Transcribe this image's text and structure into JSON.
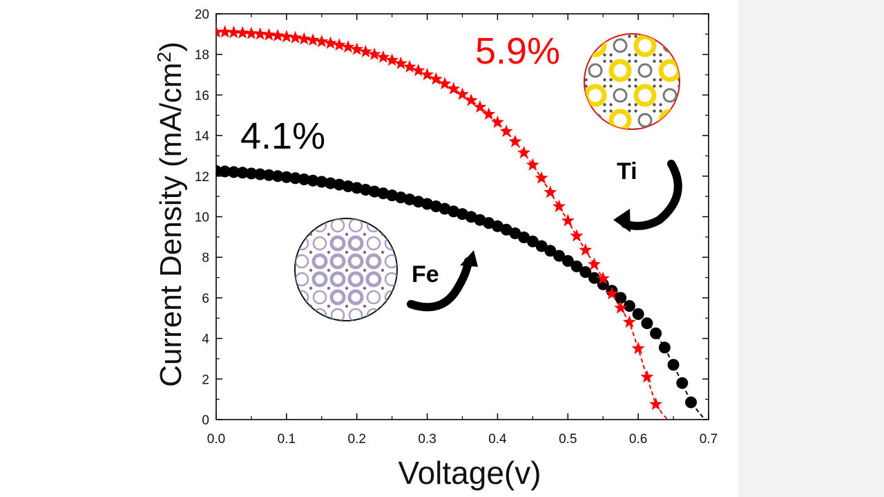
{
  "colors": {
    "black_series": "#000000",
    "red_series": "#ff0000",
    "panel": "#f2f2f2",
    "ti_atoms": "#f5d60a",
    "fe_atoms": "#9a8fb8"
  },
  "chart_data": {
    "type": "scatter",
    "xlabel": "Voltage(v)",
    "ylabel": "Current Density (mA/cm",
    "ylabel_sup": "2",
    "ylabel_close": ")",
    "xlim": [
      0.0,
      0.7
    ],
    "ylim": [
      0,
      20
    ],
    "x_ticks": [
      "0.0",
      "0.1",
      "0.2",
      "0.3",
      "0.4",
      "0.5",
      "0.6",
      "0.7"
    ],
    "y_ticks": [
      "0",
      "2",
      "4",
      "6",
      "8",
      "10",
      "12",
      "14",
      "16",
      "18",
      "20"
    ],
    "grid": false,
    "series": [
      {
        "marker": "circle",
        "color": "#000000",
        "efficiency": "4.1%",
        "x": [
          0.0,
          0.0125,
          0.025,
          0.0375,
          0.05,
          0.0625,
          0.075,
          0.0875,
          0.1,
          0.1125,
          0.125,
          0.1375,
          0.15,
          0.1625,
          0.175,
          0.1875,
          0.2,
          0.2125,
          0.225,
          0.2375,
          0.25,
          0.2625,
          0.275,
          0.2875,
          0.3,
          0.3125,
          0.325,
          0.3375,
          0.35,
          0.3625,
          0.375,
          0.3875,
          0.4,
          0.4125,
          0.425,
          0.4375,
          0.45,
          0.4625,
          0.475,
          0.4875,
          0.5,
          0.5125,
          0.525,
          0.5375,
          0.55,
          0.5625,
          0.575,
          0.5875,
          0.6,
          0.6125,
          0.625,
          0.6375,
          0.65,
          0.6625,
          0.675
        ],
        "y": [
          12.25,
          12.23,
          12.2,
          12.17,
          12.13,
          12.09,
          12.05,
          12.0,
          11.95,
          11.9,
          11.84,
          11.78,
          11.72,
          11.65,
          11.58,
          11.5,
          11.42,
          11.33,
          11.24,
          11.15,
          11.05,
          10.95,
          10.85,
          10.74,
          10.63,
          10.51,
          10.39,
          10.26,
          10.13,
          9.99,
          9.84,
          9.69,
          9.53,
          9.36,
          9.18,
          8.98,
          8.78,
          8.55,
          8.32,
          8.07,
          7.82,
          7.55,
          7.27,
          6.98,
          6.67,
          6.35,
          6.0,
          5.6,
          5.2,
          4.75,
          4.25,
          3.55,
          2.7,
          1.8,
          0.85
        ]
      },
      {
        "marker": "star",
        "color": "#ff0000",
        "efficiency": "5.9%",
        "x": [
          0.0,
          0.0125,
          0.025,
          0.0375,
          0.05,
          0.0625,
          0.075,
          0.0875,
          0.1,
          0.1125,
          0.125,
          0.1375,
          0.15,
          0.1625,
          0.175,
          0.1875,
          0.2,
          0.2125,
          0.225,
          0.2375,
          0.25,
          0.2625,
          0.275,
          0.2875,
          0.3,
          0.3125,
          0.325,
          0.3375,
          0.35,
          0.3625,
          0.375,
          0.3875,
          0.4,
          0.4125,
          0.425,
          0.4375,
          0.45,
          0.4625,
          0.475,
          0.4875,
          0.5,
          0.5125,
          0.525,
          0.5375,
          0.55,
          0.5625,
          0.575,
          0.5875,
          0.6,
          0.6125,
          0.625
        ],
        "y": [
          19.1,
          19.1,
          19.08,
          19.06,
          19.03,
          19.0,
          18.96,
          18.92,
          18.87,
          18.82,
          18.76,
          18.7,
          18.63,
          18.55,
          18.46,
          18.36,
          18.25,
          18.13,
          18.0,
          17.86,
          17.71,
          17.55,
          17.38,
          17.2,
          17.0,
          16.78,
          16.55,
          16.3,
          16.03,
          15.73,
          15.4,
          15.05,
          14.65,
          14.2,
          13.7,
          13.15,
          12.55,
          11.9,
          11.2,
          10.5,
          9.8,
          9.05,
          8.35,
          7.65,
          6.95,
          6.2,
          5.5,
          4.8,
          3.5,
          2.1,
          0.75
        ]
      }
    ],
    "fit_lines": [
      {
        "color": "#000000",
        "x": [
          0.675,
          0.6875,
          0.695
        ],
        "y": [
          0.85,
          0.3,
          0.0
        ]
      },
      {
        "color": "#ff0000",
        "x": [
          0.625,
          0.635,
          0.642
        ],
        "y": [
          0.75,
          0.25,
          0.0
        ]
      }
    ],
    "annotations": [
      {
        "text": "4.1%",
        "color": "#000000"
      },
      {
        "text": "5.9%",
        "color": "#ff0000"
      },
      {
        "text": "Ti",
        "color": "#000000"
      },
      {
        "text": "Fe",
        "color": "#000000"
      }
    ]
  }
}
